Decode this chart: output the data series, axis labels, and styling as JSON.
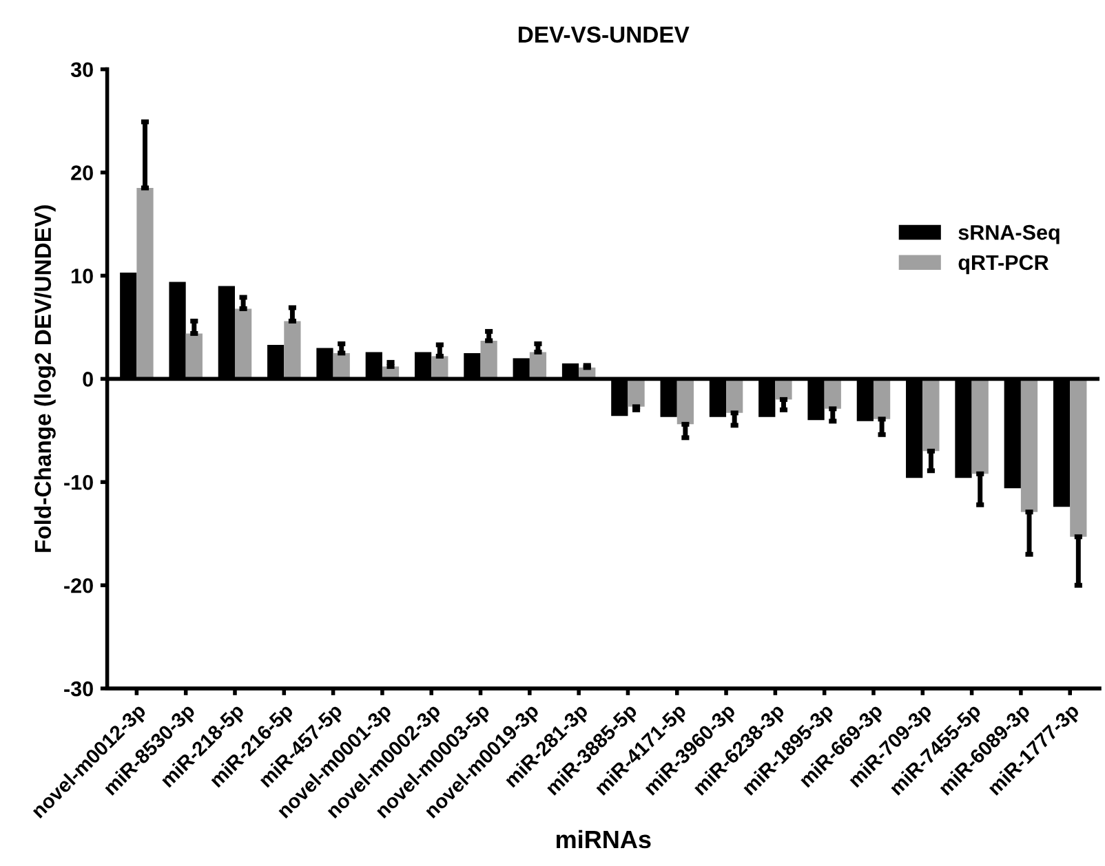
{
  "chart_data": {
    "type": "bar",
    "title": "DEV-VS-UNDEV",
    "xlabel": "miRNAs",
    "ylabel": "Fold-Change (log2 DEV/UNDEV)",
    "categories": [
      "novel-m0012-3p",
      "miR-8530-3p",
      "miR-218-5p",
      "miR-216-5p",
      "miR-457-5p",
      "novel-m0001-3p",
      "novel-m0002-3p",
      "novel-m0003-5p",
      "novel-m0019-3p",
      "miR-281-3p",
      "miR-3885-5p",
      "miR-4171-5p",
      "miR-3960-3p",
      "miR-6238-3p",
      "miR-1895-3p",
      "miR-669-3p",
      "miR-709-3p",
      "miR-7455-5p",
      "miR-6089-3p",
      "miR-1777-3p"
    ],
    "series": [
      {
        "name": "sRNA-Seq",
        "color": "#000000",
        "values": [
          10.3,
          9.4,
          9.0,
          3.3,
          3.0,
          2.6,
          2.6,
          2.5,
          2.0,
          1.5,
          -3.6,
          -3.7,
          -3.7,
          -3.7,
          -4.0,
          -4.1,
          -9.6,
          -9.6,
          -10.6,
          -12.4
        ]
      },
      {
        "name": "qRT-PCR",
        "color": "#a0a0a0",
        "values": [
          18.5,
          4.4,
          6.8,
          5.6,
          2.5,
          1.2,
          2.2,
          3.7,
          2.6,
          1.1,
          -2.7,
          -4.4,
          -3.3,
          -2.0,
          -2.9,
          -3.9,
          -7.0,
          -9.2,
          -12.9,
          -15.3
        ],
        "errors": [
          [
            18.5,
            24.9
          ],
          [
            4.4,
            5.6
          ],
          [
            6.8,
            7.9
          ],
          [
            5.6,
            6.9
          ],
          [
            2.5,
            3.4
          ],
          [
            1.2,
            1.6
          ],
          [
            2.2,
            3.3
          ],
          [
            3.7,
            4.6
          ],
          [
            2.6,
            3.4
          ],
          [
            1.1,
            1.3
          ],
          [
            -3.0,
            -2.7
          ],
          [
            -5.7,
            -4.4
          ],
          [
            -4.5,
            -3.3
          ],
          [
            -3.0,
            -2.0
          ],
          [
            -4.1,
            -2.9
          ],
          [
            -5.4,
            -3.9
          ],
          [
            -8.9,
            -7.0
          ],
          [
            -12.2,
            -9.2
          ],
          [
            -17.0,
            -12.9
          ],
          [
            -20.0,
            -15.3
          ]
        ]
      }
    ],
    "ylim": [
      -30,
      30
    ],
    "yticks": [
      -30,
      -20,
      -10,
      0,
      10,
      20,
      30
    ],
    "ref_lines": [
      {
        "axis": "y",
        "value": 0,
        "label": null,
        "color": "#000000"
      }
    ],
    "legend": "top right",
    "grid": false
  }
}
